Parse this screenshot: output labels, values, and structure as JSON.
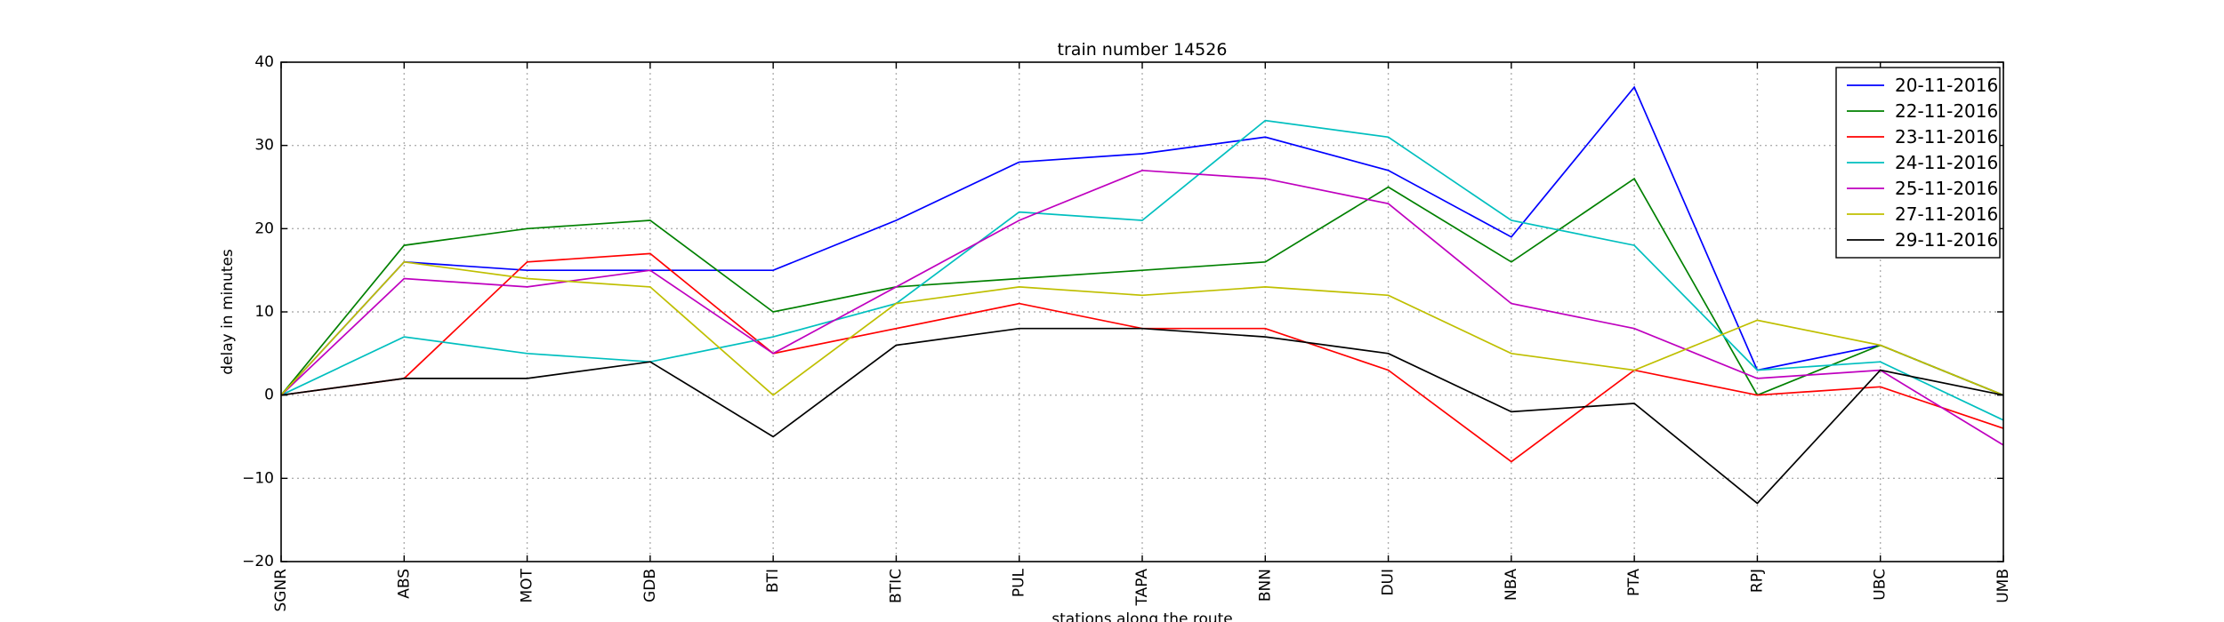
{
  "chart_data": {
    "type": "line",
    "title": "train number 14526",
    "xlabel": "stations along the route",
    "ylabel": "delay in minutes",
    "categories": [
      "SGNR",
      "ABS",
      "MOT",
      "GDB",
      "BTI",
      "BTIC",
      "PUL",
      "TAPA",
      "BNN",
      "DUI",
      "NBA",
      "PTA",
      "RPJ",
      "UBC",
      "UMB"
    ],
    "ylim": [
      -20,
      40
    ],
    "yticks": [
      -20,
      -10,
      0,
      10,
      20,
      30,
      40
    ],
    "ytick_labels": [
      "−20",
      "−10",
      "0",
      "10",
      "20",
      "30",
      "40"
    ],
    "grid": true,
    "legend_position": "top-right",
    "series": [
      {
        "name": "20-11-2016",
        "color": "#0000ff",
        "values": [
          0,
          16,
          15,
          15,
          15,
          21,
          28,
          29,
          31,
          27,
          19,
          37,
          3,
          6,
          0
        ]
      },
      {
        "name": "22-11-2016",
        "color": "#008000",
        "values": [
          0,
          18,
          20,
          21,
          10,
          13,
          14,
          15,
          16,
          25,
          16,
          26,
          0,
          6,
          0
        ]
      },
      {
        "name": "23-11-2016",
        "color": "#ff0000",
        "values": [
          0,
          2,
          16,
          17,
          5,
          8,
          11,
          8,
          8,
          3,
          -8,
          3,
          0,
          1,
          -4
        ]
      },
      {
        "name": "24-11-2016",
        "color": "#00bfbf",
        "values": [
          0,
          7,
          5,
          4,
          7,
          11,
          22,
          21,
          33,
          31,
          21,
          18,
          3,
          4,
          -3
        ]
      },
      {
        "name": "25-11-2016",
        "color": "#bf00bf",
        "values": [
          0,
          14,
          13,
          15,
          5,
          13,
          21,
          27,
          26,
          23,
          11,
          8,
          2,
          3,
          -6
        ]
      },
      {
        "name": "27-11-2016",
        "color": "#bfbf00",
        "values": [
          0,
          16,
          14,
          13,
          0,
          11,
          13,
          12,
          13,
          12,
          5,
          3,
          9,
          6,
          0
        ]
      },
      {
        "name": "29-11-2016",
        "color": "#000000",
        "values": [
          0,
          2,
          2,
          4,
          -5,
          6,
          8,
          8,
          7,
          5,
          -2,
          -1,
          -13,
          3,
          0
        ]
      }
    ]
  }
}
